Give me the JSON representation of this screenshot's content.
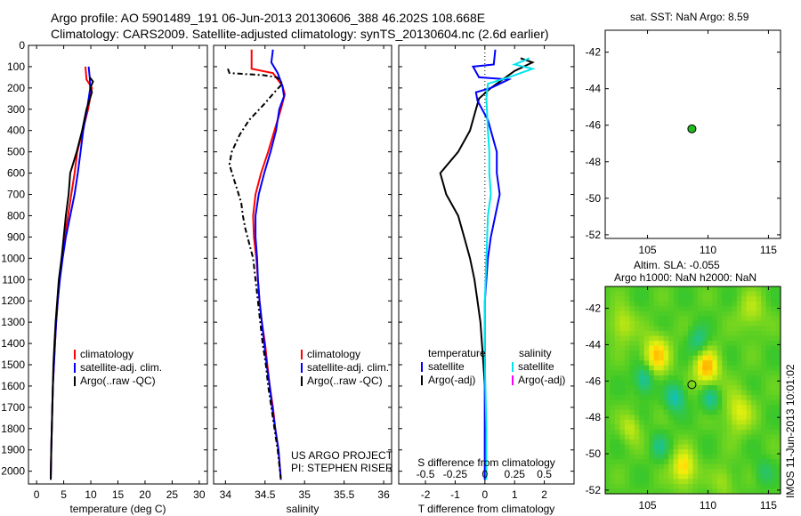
{
  "header": {
    "line1": "Argo profile: AO 5901489_191 06-Jun-2013 20130606_388 46.202S 108.668E",
    "line2": "Climatology: CARS2009. Satellite-adjusted climatology: synTS_20130604.nc (2.6d earlier)"
  },
  "colors": {
    "climatology": "#ff0000",
    "satellite": "#0000ff",
    "argo": "#000000",
    "salinity_satellite": "#00e5ee",
    "salinity_argo": "#ff00ff",
    "marker": "#22bb22"
  },
  "depth_ticks": [
    0,
    100,
    200,
    300,
    400,
    500,
    600,
    700,
    800,
    900,
    1000,
    1100,
    1200,
    1300,
    1400,
    1500,
    1600,
    1700,
    1800,
    1900,
    2000
  ],
  "chart_data": [
    {
      "type": "line",
      "xlabel": "temperature (deg C)",
      "xlim": [
        -1.5,
        31.5
      ],
      "ylim": [
        2060,
        0
      ],
      "xticks": [
        0,
        5,
        10,
        15,
        20,
        25,
        30
      ],
      "legend": [
        "climatology",
        "satellite-adj. clim.",
        "Argo(..raw -QC)"
      ],
      "series": [
        {
          "name": "climatology",
          "points": [
            [
              9.0,
              100
            ],
            [
              9.2,
              160
            ],
            [
              10.2,
              200
            ],
            [
              9.5,
              300
            ],
            [
              8.5,
              400
            ],
            [
              7.5,
              500
            ],
            [
              7.0,
              600
            ],
            [
              6.4,
              700
            ],
            [
              5.8,
              800
            ],
            [
              5.2,
              900
            ],
            [
              4.6,
              1000
            ],
            [
              4.2,
              1100
            ],
            [
              3.9,
              1200
            ],
            [
              3.6,
              1300
            ],
            [
              3.4,
              1400
            ],
            [
              3.2,
              1500
            ],
            [
              3.0,
              1600
            ],
            [
              2.9,
              1700
            ],
            [
              2.8,
              1800
            ],
            [
              2.7,
              1900
            ],
            [
              2.6,
              2040
            ]
          ]
        },
        {
          "name": "satellite-adj. clim.",
          "points": [
            [
              9.6,
              100
            ],
            [
              9.8,
              150
            ],
            [
              9.9,
              200
            ],
            [
              9.3,
              300
            ],
            [
              8.6,
              400
            ],
            [
              8.1,
              500
            ],
            [
              7.6,
              600
            ],
            [
              7.0,
              700
            ],
            [
              6.2,
              800
            ],
            [
              5.4,
              900
            ],
            [
              4.8,
              1000
            ],
            [
              4.3,
              1100
            ],
            [
              3.9,
              1200
            ],
            [
              3.6,
              1300
            ],
            [
              3.4,
              1400
            ],
            [
              3.2,
              1500
            ],
            [
              3.0,
              1600
            ],
            [
              2.9,
              1700
            ],
            [
              2.8,
              1800
            ],
            [
              2.7,
              1900
            ],
            [
              2.6,
              2040
            ]
          ]
        },
        {
          "name": "Argo(..raw -QC)",
          "points": [
            [
              9.8,
              150
            ],
            [
              10.4,
              170
            ],
            [
              9.9,
              200
            ],
            [
              10.2,
              220
            ],
            [
              9.2,
              300
            ],
            [
              8.4,
              400
            ],
            [
              7.4,
              500
            ],
            [
              6.2,
              600
            ],
            [
              5.9,
              700
            ],
            [
              5.4,
              800
            ],
            [
              5.0,
              900
            ],
            [
              4.6,
              1000
            ],
            [
              4.1,
              1100
            ],
            [
              3.8,
              1200
            ],
            [
              3.5,
              1300
            ],
            [
              3.3,
              1400
            ],
            [
              3.1,
              1500
            ],
            [
              3.0,
              1600
            ],
            [
              2.9,
              1700
            ],
            [
              2.8,
              1800
            ],
            [
              2.7,
              1900
            ],
            [
              2.6,
              2040
            ]
          ]
        }
      ]
    },
    {
      "type": "line",
      "xlabel": "salinity",
      "xlim": [
        33.85,
        36.1
      ],
      "ylim": [
        2060,
        0
      ],
      "xticks": [
        34,
        34.5,
        35,
        35.5,
        36
      ],
      "xtick_labels": [
        "34",
        "34.5",
        "35",
        "35.5",
        "36"
      ],
      "legend": [
        "climatology",
        "satellite-adj. clim."
      ],
      "series": [
        {
          "name": "climatology",
          "points": [
            [
              34.33,
              20
            ],
            [
              34.33,
              110
            ],
            [
              34.6,
              130
            ],
            [
              34.72,
              190
            ],
            [
              34.75,
              230
            ],
            [
              34.7,
              300
            ],
            [
              34.62,
              400
            ],
            [
              34.54,
              500
            ],
            [
              34.45,
              600
            ],
            [
              34.38,
              700
            ],
            [
              34.35,
              800
            ],
            [
              34.36,
              900
            ],
            [
              34.39,
              1000
            ],
            [
              34.41,
              1100
            ],
            [
              34.43,
              1200
            ],
            [
              34.46,
              1300
            ],
            [
              34.5,
              1400
            ],
            [
              34.53,
              1500
            ],
            [
              34.56,
              1600
            ],
            [
              34.6,
              1700
            ],
            [
              34.63,
              1800
            ],
            [
              34.67,
              1900
            ],
            [
              34.7,
              2040
            ]
          ]
        },
        {
          "name": "satellite-adj. clim.",
          "points": [
            [
              34.6,
              20
            ],
            [
              34.58,
              80
            ],
            [
              34.66,
              130
            ],
            [
              34.72,
              190
            ],
            [
              34.74,
              240
            ],
            [
              34.68,
              300
            ],
            [
              34.64,
              400
            ],
            [
              34.57,
              500
            ],
            [
              34.49,
              600
            ],
            [
              34.42,
              700
            ],
            [
              34.38,
              800
            ],
            [
              34.38,
              900
            ],
            [
              34.4,
              1000
            ],
            [
              34.41,
              1100
            ],
            [
              34.43,
              1200
            ],
            [
              34.46,
              1300
            ],
            [
              34.49,
              1400
            ],
            [
              34.52,
              1500
            ],
            [
              34.56,
              1600
            ],
            [
              34.59,
              1700
            ],
            [
              34.63,
              1800
            ],
            [
              34.67,
              1900
            ],
            [
              34.7,
              2040
            ]
          ]
        },
        {
          "name": "",
          "points": [
            [
              34.03,
              110
            ],
            [
              34.05,
              130
            ],
            [
              34.48,
              140
            ],
            [
              34.65,
              150
            ],
            [
              34.72,
              180
            ],
            [
              34.62,
              220
            ],
            [
              34.48,
              280
            ],
            [
              34.3,
              350
            ],
            [
              34.18,
              420
            ],
            [
              34.08,
              500
            ],
            [
              34.05,
              560
            ],
            [
              34.1,
              620
            ],
            [
              34.15,
              680
            ],
            [
              34.2,
              740
            ],
            [
              34.22,
              800
            ],
            [
              34.25,
              860
            ],
            [
              34.3,
              930
            ],
            [
              34.35,
              1000
            ],
            [
              34.38,
              1100
            ],
            [
              34.41,
              1200
            ],
            [
              34.44,
              1300
            ],
            [
              34.47,
              1400
            ],
            [
              34.51,
              1500
            ],
            [
              34.54,
              1600
            ],
            [
              34.58,
              1700
            ],
            [
              34.62,
              1800
            ],
            [
              34.66,
              1900
            ],
            [
              34.7,
              2040
            ]
          ]
        }
      ]
    },
    {
      "type": "line",
      "xlabel": "T difference from climatology",
      "xlabel2": "S difference from climatology",
      "xlim": [
        -2.9,
        3.0
      ],
      "ylim": [
        2060,
        0
      ],
      "xticks": [
        -2,
        -1,
        0,
        1,
        2
      ],
      "top_ticks": [
        -0.5,
        -0.25,
        0,
        0.25,
        0.5
      ],
      "top_tick_labels": [
        "-0.5",
        "-0.25",
        "0",
        "0.25",
        "0.5"
      ],
      "legend": {
        "temperature": [
          "satellite",
          "Argo(-adj)"
        ],
        "salinity": [
          "satellite",
          "Argo(-adj)"
        ]
      },
      "legend_titles": {
        "temperature": "temperature",
        "salinity": "salinity"
      },
      "series": [
        {
          "name": "",
          "points": [
            [
              1.2,
              60
            ],
            [
              1.6,
              80
            ],
            [
              1.0,
              120
            ],
            [
              0.7,
              150
            ],
            [
              0.2,
              200
            ],
            [
              -0.2,
              250
            ],
            [
              -0.3,
              300
            ],
            [
              -0.5,
              400
            ],
            [
              -0.9,
              500
            ],
            [
              -1.5,
              600
            ],
            [
              -1.3,
              700
            ],
            [
              -0.9,
              800
            ],
            [
              -0.7,
              900
            ],
            [
              -0.5,
              1000
            ],
            [
              -0.35,
              1100
            ],
            [
              -0.25,
              1200
            ],
            [
              -0.15,
              1300
            ],
            [
              -0.1,
              1400
            ],
            [
              -0.05,
              1500
            ],
            [
              0,
              1600
            ],
            [
              0,
              1700
            ],
            [
              0,
              1800
            ],
            [
              0,
              1900
            ],
            [
              0,
              2040
            ]
          ]
        },
        {
          "name": "",
          "points": [
            [
              0.35,
              20
            ],
            [
              0.3,
              90
            ],
            [
              -0.4,
              100
            ],
            [
              -0.2,
              150
            ],
            [
              0.8,
              160
            ],
            [
              0.2,
              200
            ],
            [
              -0.3,
              220
            ],
            [
              -0.25,
              260
            ],
            [
              0.1,
              350
            ],
            [
              0.4,
              500
            ],
            [
              0.4,
              600
            ],
            [
              0.5,
              700
            ],
            [
              0.35,
              800
            ],
            [
              0.2,
              900
            ],
            [
              0.1,
              1000
            ],
            [
              0.05,
              1100
            ],
            [
              0,
              1200
            ],
            [
              0,
              1300
            ],
            [
              0,
              1400
            ],
            [
              0,
              1500
            ],
            [
              0,
              1600
            ],
            [
              0,
              1700
            ],
            [
              0,
              1800
            ],
            [
              0,
              1900
            ],
            [
              0,
              2040
            ]
          ]
        },
        {
          "name": "",
          "points": [
            [
              1.5,
              60
            ],
            [
              1.0,
              90
            ],
            [
              1.6,
              110
            ],
            [
              0.8,
              150
            ],
            [
              0.1,
              180
            ],
            [
              0.05,
              250
            ],
            [
              0.1,
              400
            ],
            [
              0.15,
              500
            ],
            [
              0.15,
              600
            ],
            [
              0.2,
              700
            ],
            [
              0.1,
              800
            ],
            [
              0.05,
              1000
            ],
            [
              0,
              1200
            ],
            [
              0,
              1500
            ],
            [
              0.05,
              1800
            ],
            [
              0.05,
              2040
            ]
          ]
        }
      ]
    },
    {
      "type": "scatter",
      "title": "sat. SST: NaN Argo: 8.59",
      "xlim": [
        101.5,
        116
      ],
      "ylim": [
        -52.2,
        -40.8
      ],
      "xticks": [
        105,
        110,
        115
      ],
      "yticks": [
        -42,
        -44,
        -46,
        -48,
        -50,
        -52
      ],
      "points": [
        [
          108.67,
          -46.2
        ]
      ]
    },
    {
      "type": "heatmap",
      "title": "Altim. SLA: -0.055",
      "subtitle": "Argo h1000: NaN h2000: NaN",
      "xlim": [
        101.5,
        116
      ],
      "ylim": [
        -52.2,
        -40.8
      ],
      "xticks": [
        105,
        110,
        115
      ],
      "yticks": [
        -42,
        -44,
        -46,
        -48,
        -50,
        -52
      ],
      "marker": [
        108.67,
        -46.2
      ],
      "features": [
        {
          "lon": 104.7,
          "lat": -45.9,
          "v": -0.8,
          "s": 0.55
        },
        {
          "lon": 107.3,
          "lat": -46.9,
          "v": -0.8,
          "s": 0.55
        },
        {
          "lon": 109.2,
          "lat": -43.8,
          "v": -0.6,
          "s": 0.55
        },
        {
          "lon": 106.0,
          "lat": -49.6,
          "v": -0.5,
          "s": 0.5
        },
        {
          "lon": 110.2,
          "lat": -47.0,
          "v": -0.7,
          "s": 0.5
        },
        {
          "lon": 109.9,
          "lat": -45.3,
          "v": 0.9,
          "s": 0.75
        },
        {
          "lon": 105.7,
          "lat": -44.6,
          "v": 0.8,
          "s": 0.8
        },
        {
          "lon": 108.0,
          "lat": -50.8,
          "v": 0.8,
          "s": 0.7
        },
        {
          "lon": 112.5,
          "lat": -47.7,
          "v": 0.6,
          "s": 0.8
        },
        {
          "lon": 102.9,
          "lat": -42.9,
          "v": 0.5,
          "s": 0.7
        },
        {
          "lon": 113.6,
          "lat": -42.2,
          "v": 0.4,
          "s": 0.8
        },
        {
          "lon": 103.6,
          "lat": -48.6,
          "v": 0.45,
          "s": 0.6
        },
        {
          "lon": 114.6,
          "lat": -51.0,
          "v": -0.4,
          "s": 0.5
        },
        {
          "lon": 111.3,
          "lat": -51.5,
          "v": 0.35,
          "s": 0.6
        }
      ]
    }
  ],
  "credits": {
    "project": "US ARGO PROJECT",
    "pi": "PI: STEPHEN RISER",
    "stamp": "IMOS 11-Jun-2013 10:01:02"
  }
}
